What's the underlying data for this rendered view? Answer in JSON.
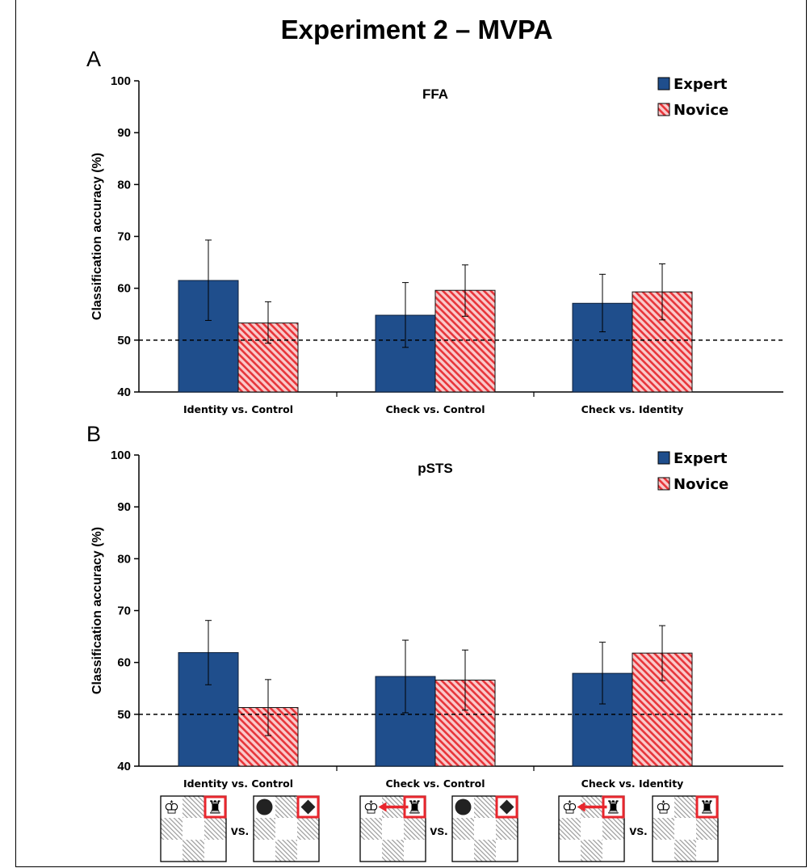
{
  "figure": {
    "title": "Experiment 2 – MVPA",
    "colors": {
      "expert": "#1f4e8c",
      "novice": "#e8353a",
      "novice_fill": "#f7c0c1",
      "dashed": "#000000"
    }
  },
  "chart_data": [
    {
      "type": "bar",
      "panel_label": "A",
      "title": "FFA",
      "ylabel": "Classification accuracy (%)",
      "ylim": [
        40,
        100
      ],
      "yticks": [
        40,
        50,
        60,
        70,
        80,
        90,
        100
      ],
      "chance_line": 50,
      "categories": [
        "Identity vs. Control",
        "Check vs. Control",
        "Check vs. Identity"
      ],
      "legend": [
        "Expert",
        "Novice"
      ],
      "legend_position": "top-right",
      "series": [
        {
          "name": "Expert",
          "values": [
            61.5,
            54.8,
            57.1
          ],
          "error_low": [
            53.8,
            48.6,
            51.6
          ],
          "error_high": [
            69.3,
            61.1,
            62.7
          ]
        },
        {
          "name": "Novice",
          "values": [
            53.3,
            59.6,
            59.3
          ],
          "error_low": [
            49.4,
            54.6,
            53.9
          ],
          "error_high": [
            57.4,
            64.5,
            64.7
          ]
        }
      ]
    },
    {
      "type": "bar",
      "panel_label": "B",
      "title": "pSTS",
      "ylabel": "Classification accuracy (%)",
      "ylim": [
        40,
        100
      ],
      "yticks": [
        40,
        50,
        60,
        70,
        80,
        90,
        100
      ],
      "chance_line": 50,
      "categories": [
        "Identity vs. Control",
        "Check vs. Control",
        "Check vs. Identity"
      ],
      "legend": [
        "Expert",
        "Novice"
      ],
      "legend_position": "top-right",
      "series": [
        {
          "name": "Expert",
          "values": [
            61.9,
            57.3,
            57.9
          ],
          "error_low": [
            55.7,
            50.3,
            52.0
          ],
          "error_high": [
            68.1,
            64.3,
            63.9
          ]
        },
        {
          "name": "Novice",
          "values": [
            51.3,
            56.6,
            61.8
          ],
          "error_low": [
            45.9,
            50.8,
            56.5
          ],
          "error_high": [
            56.7,
            62.4,
            67.1
          ]
        }
      ]
    }
  ],
  "stimuli": {
    "vs_label": "vs.",
    "pairs": [
      {
        "left": {
          "pieces": [
            "king",
            "rook"
          ],
          "arrow": false
        },
        "right": {
          "pieces": [
            "circle",
            "diamond"
          ],
          "arrow": false
        }
      },
      {
        "left": {
          "pieces": [
            "king",
            "rook"
          ],
          "arrow": true
        },
        "right": {
          "pieces": [
            "circle",
            "diamond"
          ],
          "arrow": false
        }
      },
      {
        "left": {
          "pieces": [
            "king",
            "rook"
          ],
          "arrow": true
        },
        "right": {
          "pieces": [
            "king",
            "rook"
          ],
          "arrow": false
        }
      }
    ]
  }
}
